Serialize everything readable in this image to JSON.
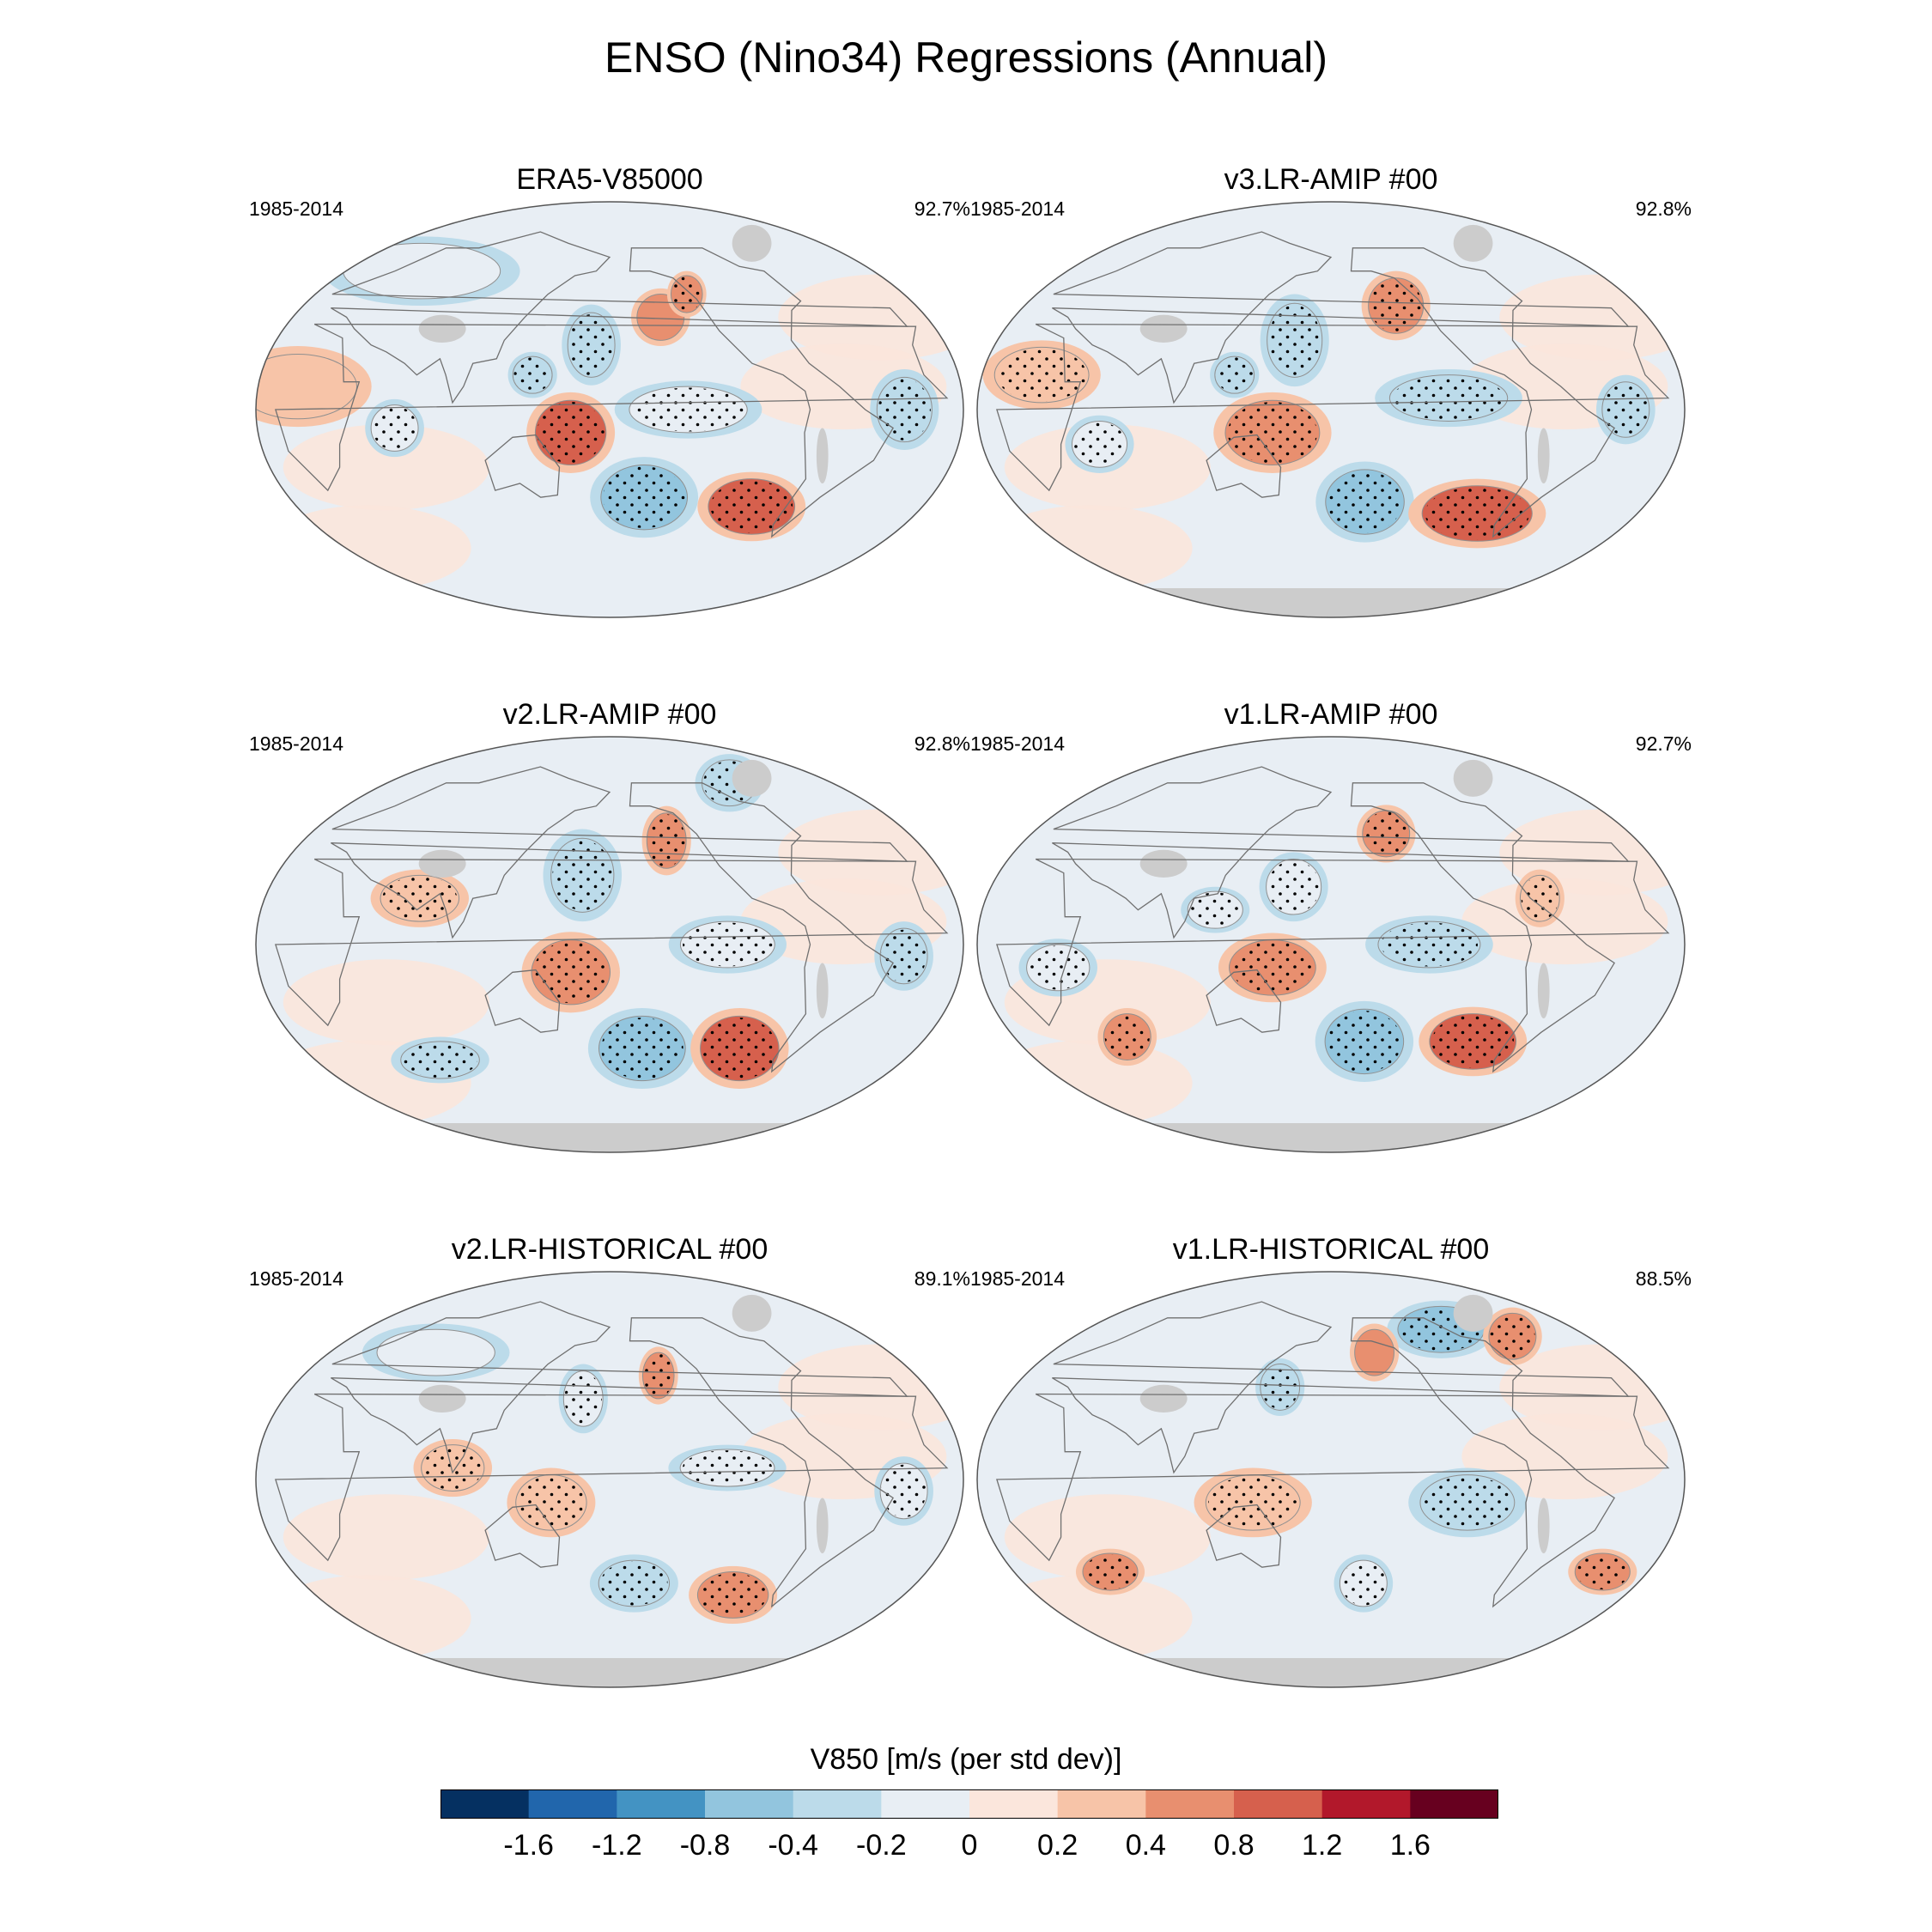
{
  "title": "ENSO (Nino34) Regressions (Annual)",
  "colors": {
    "land_mask": "#cccccc",
    "coast": "#707070",
    "contour": "#909090",
    "stipple": "#000000"
  },
  "panels": [
    {
      "title": "ERA5-V85000",
      "period": "1985-2014",
      "pct": "92.7%",
      "antarctica": false,
      "features": [
        {
          "v": -0.8,
          "lon": -160,
          "lat": -38,
          "rx": 22,
          "ry": 14,
          "stip": true
        },
        {
          "v": 0.8,
          "lon": -95,
          "lat": -42,
          "rx": 22,
          "ry": 12,
          "stip": true
        },
        {
          "v": 0.8,
          "lon": 160,
          "lat": -10,
          "rx": 18,
          "ry": 14,
          "stip": true
        },
        {
          "v": -0.4,
          "lon": 170,
          "lat": 28,
          "rx": 12,
          "ry": 14,
          "stip": true
        },
        {
          "v": 0.4,
          "lon": -150,
          "lat": 40,
          "rx": 12,
          "ry": 10,
          "stip": false
        },
        {
          "v": 0.4,
          "lon": -130,
          "lat": 50,
          "rx": 8,
          "ry": 8,
          "stip": true
        },
        {
          "v": -0.4,
          "lon": -30,
          "lat": 0,
          "rx": 14,
          "ry": 14,
          "stip": true
        },
        {
          "v": -0.2,
          "lon": -140,
          "lat": 0,
          "rx": 30,
          "ry": 10,
          "stip": true
        },
        {
          "v": -0.4,
          "lon": 140,
          "lat": 15,
          "rx": 10,
          "ry": 8,
          "stip": true
        },
        {
          "v": -0.2,
          "lon": 70,
          "lat": -8,
          "rx": 12,
          "ry": 10,
          "stip": true
        },
        {
          "v": 0.2,
          "lon": 20,
          "lat": 10,
          "rx": 30,
          "ry": 14,
          "stip": false
        },
        {
          "v": -0.2,
          "lon": 40,
          "lat": 60,
          "rx": 40,
          "ry": 12,
          "stip": false
        }
      ]
    },
    {
      "title": "v3.LR-AMIP  #00",
      "period": "1985-2014",
      "pct": "92.8%",
      "antarctica": true,
      "features": [
        {
          "v": -0.8,
          "lon": -160,
          "lat": -40,
          "rx": 20,
          "ry": 14,
          "stip": true
        },
        {
          "v": 0.8,
          "lon": -90,
          "lat": -45,
          "rx": 28,
          "ry": 12,
          "stip": true
        },
        {
          "v": 0.4,
          "lon": 150,
          "lat": -10,
          "rx": 24,
          "ry": 14,
          "stip": true
        },
        {
          "v": -0.4,
          "lon": 160,
          "lat": 30,
          "rx": 14,
          "ry": 16,
          "stip": true
        },
        {
          "v": 0.4,
          "lon": -140,
          "lat": 45,
          "rx": 14,
          "ry": 12,
          "stip": true
        },
        {
          "v": -0.4,
          "lon": -120,
          "lat": 5,
          "rx": 30,
          "ry": 10,
          "stip": true
        },
        {
          "v": -0.4,
          "lon": -30,
          "lat": 0,
          "rx": 12,
          "ry": 12,
          "stip": true
        },
        {
          "v": 0.2,
          "lon": 30,
          "lat": 15,
          "rx": 24,
          "ry": 12,
          "stip": true
        },
        {
          "v": -0.2,
          "lon": 60,
          "lat": -15,
          "rx": 14,
          "ry": 10,
          "stip": true
        },
        {
          "v": -0.4,
          "lon": 130,
          "lat": 15,
          "rx": 10,
          "ry": 8,
          "stip": true
        }
      ]
    },
    {
      "title": "v2.LR-AMIP  #00",
      "period": "1985-2014",
      "pct": "92.8%",
      "antarctica": true,
      "features": [
        {
          "v": -0.8,
          "lon": -160,
          "lat": -45,
          "rx": 22,
          "ry": 14,
          "stip": true
        },
        {
          "v": 0.8,
          "lon": -100,
          "lat": -45,
          "rx": 20,
          "ry": 14,
          "stip": true
        },
        {
          "v": 0.4,
          "lon": 160,
          "lat": -12,
          "rx": 20,
          "ry": 14,
          "stip": true
        },
        {
          "v": -0.4,
          "lon": 165,
          "lat": 30,
          "rx": 16,
          "ry": 16,
          "stip": true
        },
        {
          "v": 0.4,
          "lon": -145,
          "lat": 45,
          "rx": 10,
          "ry": 12,
          "stip": true
        },
        {
          "v": -0.4,
          "lon": -70,
          "lat": 70,
          "rx": 14,
          "ry": 10,
          "stip": true
        },
        {
          "v": -0.2,
          "lon": -120,
          "lat": 0,
          "rx": 24,
          "ry": 10,
          "stip": true
        },
        {
          "v": -0.4,
          "lon": -30,
          "lat": -5,
          "rx": 12,
          "ry": 12,
          "stip": true
        },
        {
          "v": 0.2,
          "lon": 80,
          "lat": 20,
          "rx": 20,
          "ry": 10,
          "stip": true
        },
        {
          "v": -0.4,
          "lon": 70,
          "lat": -50,
          "rx": 20,
          "ry": 8,
          "stip": true
        }
      ]
    },
    {
      "title": "v1.LR-AMIP  #00",
      "period": "1985-2014",
      "pct": "92.7%",
      "antarctica": true,
      "features": [
        {
          "v": -0.8,
          "lon": -160,
          "lat": -42,
          "rx": 20,
          "ry": 14,
          "stip": true
        },
        {
          "v": 0.8,
          "lon": -95,
          "lat": -42,
          "rx": 22,
          "ry": 12,
          "stip": true
        },
        {
          "v": 0.4,
          "lon": 150,
          "lat": -10,
          "rx": 22,
          "ry": 12,
          "stip": true
        },
        {
          "v": -0.2,
          "lon": 160,
          "lat": 25,
          "rx": 14,
          "ry": 12,
          "stip": true
        },
        {
          "v": 0.4,
          "lon": -145,
          "lat": 48,
          "rx": 12,
          "ry": 10,
          "stip": true
        },
        {
          "v": -0.4,
          "lon": -130,
          "lat": 0,
          "rx": 26,
          "ry": 10,
          "stip": true
        },
        {
          "v": 0.2,
          "lon": -70,
          "lat": 20,
          "rx": 10,
          "ry": 10,
          "stip": true
        },
        {
          "v": 0.4,
          "lon": 60,
          "lat": -40,
          "rx": 12,
          "ry": 10,
          "stip": true
        },
        {
          "v": -0.2,
          "lon": 120,
          "lat": 15,
          "rx": 14,
          "ry": 8,
          "stip": true
        },
        {
          "v": -0.2,
          "lon": 40,
          "lat": -10,
          "rx": 16,
          "ry": 10,
          "stip": true
        }
      ]
    },
    {
      "title": "v2.LR-HISTORICAL  #00",
      "period": "1985-2014",
      "pct": "89.1%",
      "antarctica": true,
      "features": [
        {
          "v": -0.4,
          "lon": -165,
          "lat": -45,
          "rx": 18,
          "ry": 10,
          "stip": true
        },
        {
          "v": 0.4,
          "lon": -100,
          "lat": -50,
          "rx": 18,
          "ry": 10,
          "stip": true
        },
        {
          "v": 0.2,
          "lon": 150,
          "lat": -10,
          "rx": 18,
          "ry": 12,
          "stip": true
        },
        {
          "v": -0.2,
          "lon": 165,
          "lat": 35,
          "rx": 10,
          "ry": 12,
          "stip": true
        },
        {
          "v": 0.4,
          "lon": -150,
          "lat": 45,
          "rx": 8,
          "ry": 10,
          "stip": true
        },
        {
          "v": -0.2,
          "lon": -120,
          "lat": 5,
          "rx": 24,
          "ry": 8,
          "stip": true
        },
        {
          "v": -0.2,
          "lon": -30,
          "lat": -5,
          "rx": 12,
          "ry": 12,
          "stip": true
        },
        {
          "v": 0.2,
          "lon": 100,
          "lat": 5,
          "rx": 16,
          "ry": 10,
          "stip": true
        },
        {
          "v": -0.2,
          "lon": 60,
          "lat": 55,
          "rx": 30,
          "ry": 10,
          "stip": false
        }
      ]
    },
    {
      "title": "v1.LR-HISTORICAL  #00",
      "period": "1985-2014",
      "pct": "88.5%",
      "antarctica": true,
      "features": [
        {
          "v": -0.8,
          "lon": -90,
          "lat": 65,
          "rx": 22,
          "ry": 10,
          "stip": true
        },
        {
          "v": 0.4,
          "lon": -40,
          "lat": 62,
          "rx": 12,
          "ry": 10,
          "stip": true
        },
        {
          "v": 0.4,
          "lon": -150,
          "lat": 55,
          "rx": 10,
          "ry": 10,
          "stip": false
        },
        {
          "v": -0.4,
          "lon": -110,
          "lat": -10,
          "rx": 24,
          "ry": 12,
          "stip": true
        },
        {
          "v": 0.2,
          "lon": 140,
          "lat": -10,
          "rx": 24,
          "ry": 12,
          "stip": true
        },
        {
          "v": 0.4,
          "lon": 50,
          "lat": -40,
          "rx": 14,
          "ry": 8,
          "stip": true
        },
        {
          "v": 0.4,
          "lon": -20,
          "lat": -40,
          "rx": 14,
          "ry": 8,
          "stip": true
        },
        {
          "v": -0.4,
          "lon": 150,
          "lat": 40,
          "rx": 10,
          "ry": 10,
          "stip": true
        },
        {
          "v": -0.2,
          "lon": -160,
          "lat": -45,
          "rx": 12,
          "ry": 10,
          "stip": true
        }
      ]
    }
  ],
  "colorbar": {
    "title": "V850 [m/s (per std dev)]",
    "boundaries": [
      -1.6,
      -1.2,
      -0.8,
      -0.4,
      -0.2,
      0,
      0.2,
      0.4,
      0.8,
      1.2,
      1.6
    ],
    "tick_labels": [
      "-1.6",
      "-1.2",
      "-0.8",
      "-0.4",
      "-0.2",
      "0",
      "0.2",
      "0.4",
      "0.8",
      "1.2",
      "1.6"
    ],
    "colors": [
      "#053061",
      "#2166ac",
      "#4393c3",
      "#92c5de",
      "#bcdbea",
      "#e8eef4",
      "#fbe6dc",
      "#f7c4a8",
      "#e88f6f",
      "#d6604d",
      "#b2182b",
      "#67001f"
    ]
  }
}
